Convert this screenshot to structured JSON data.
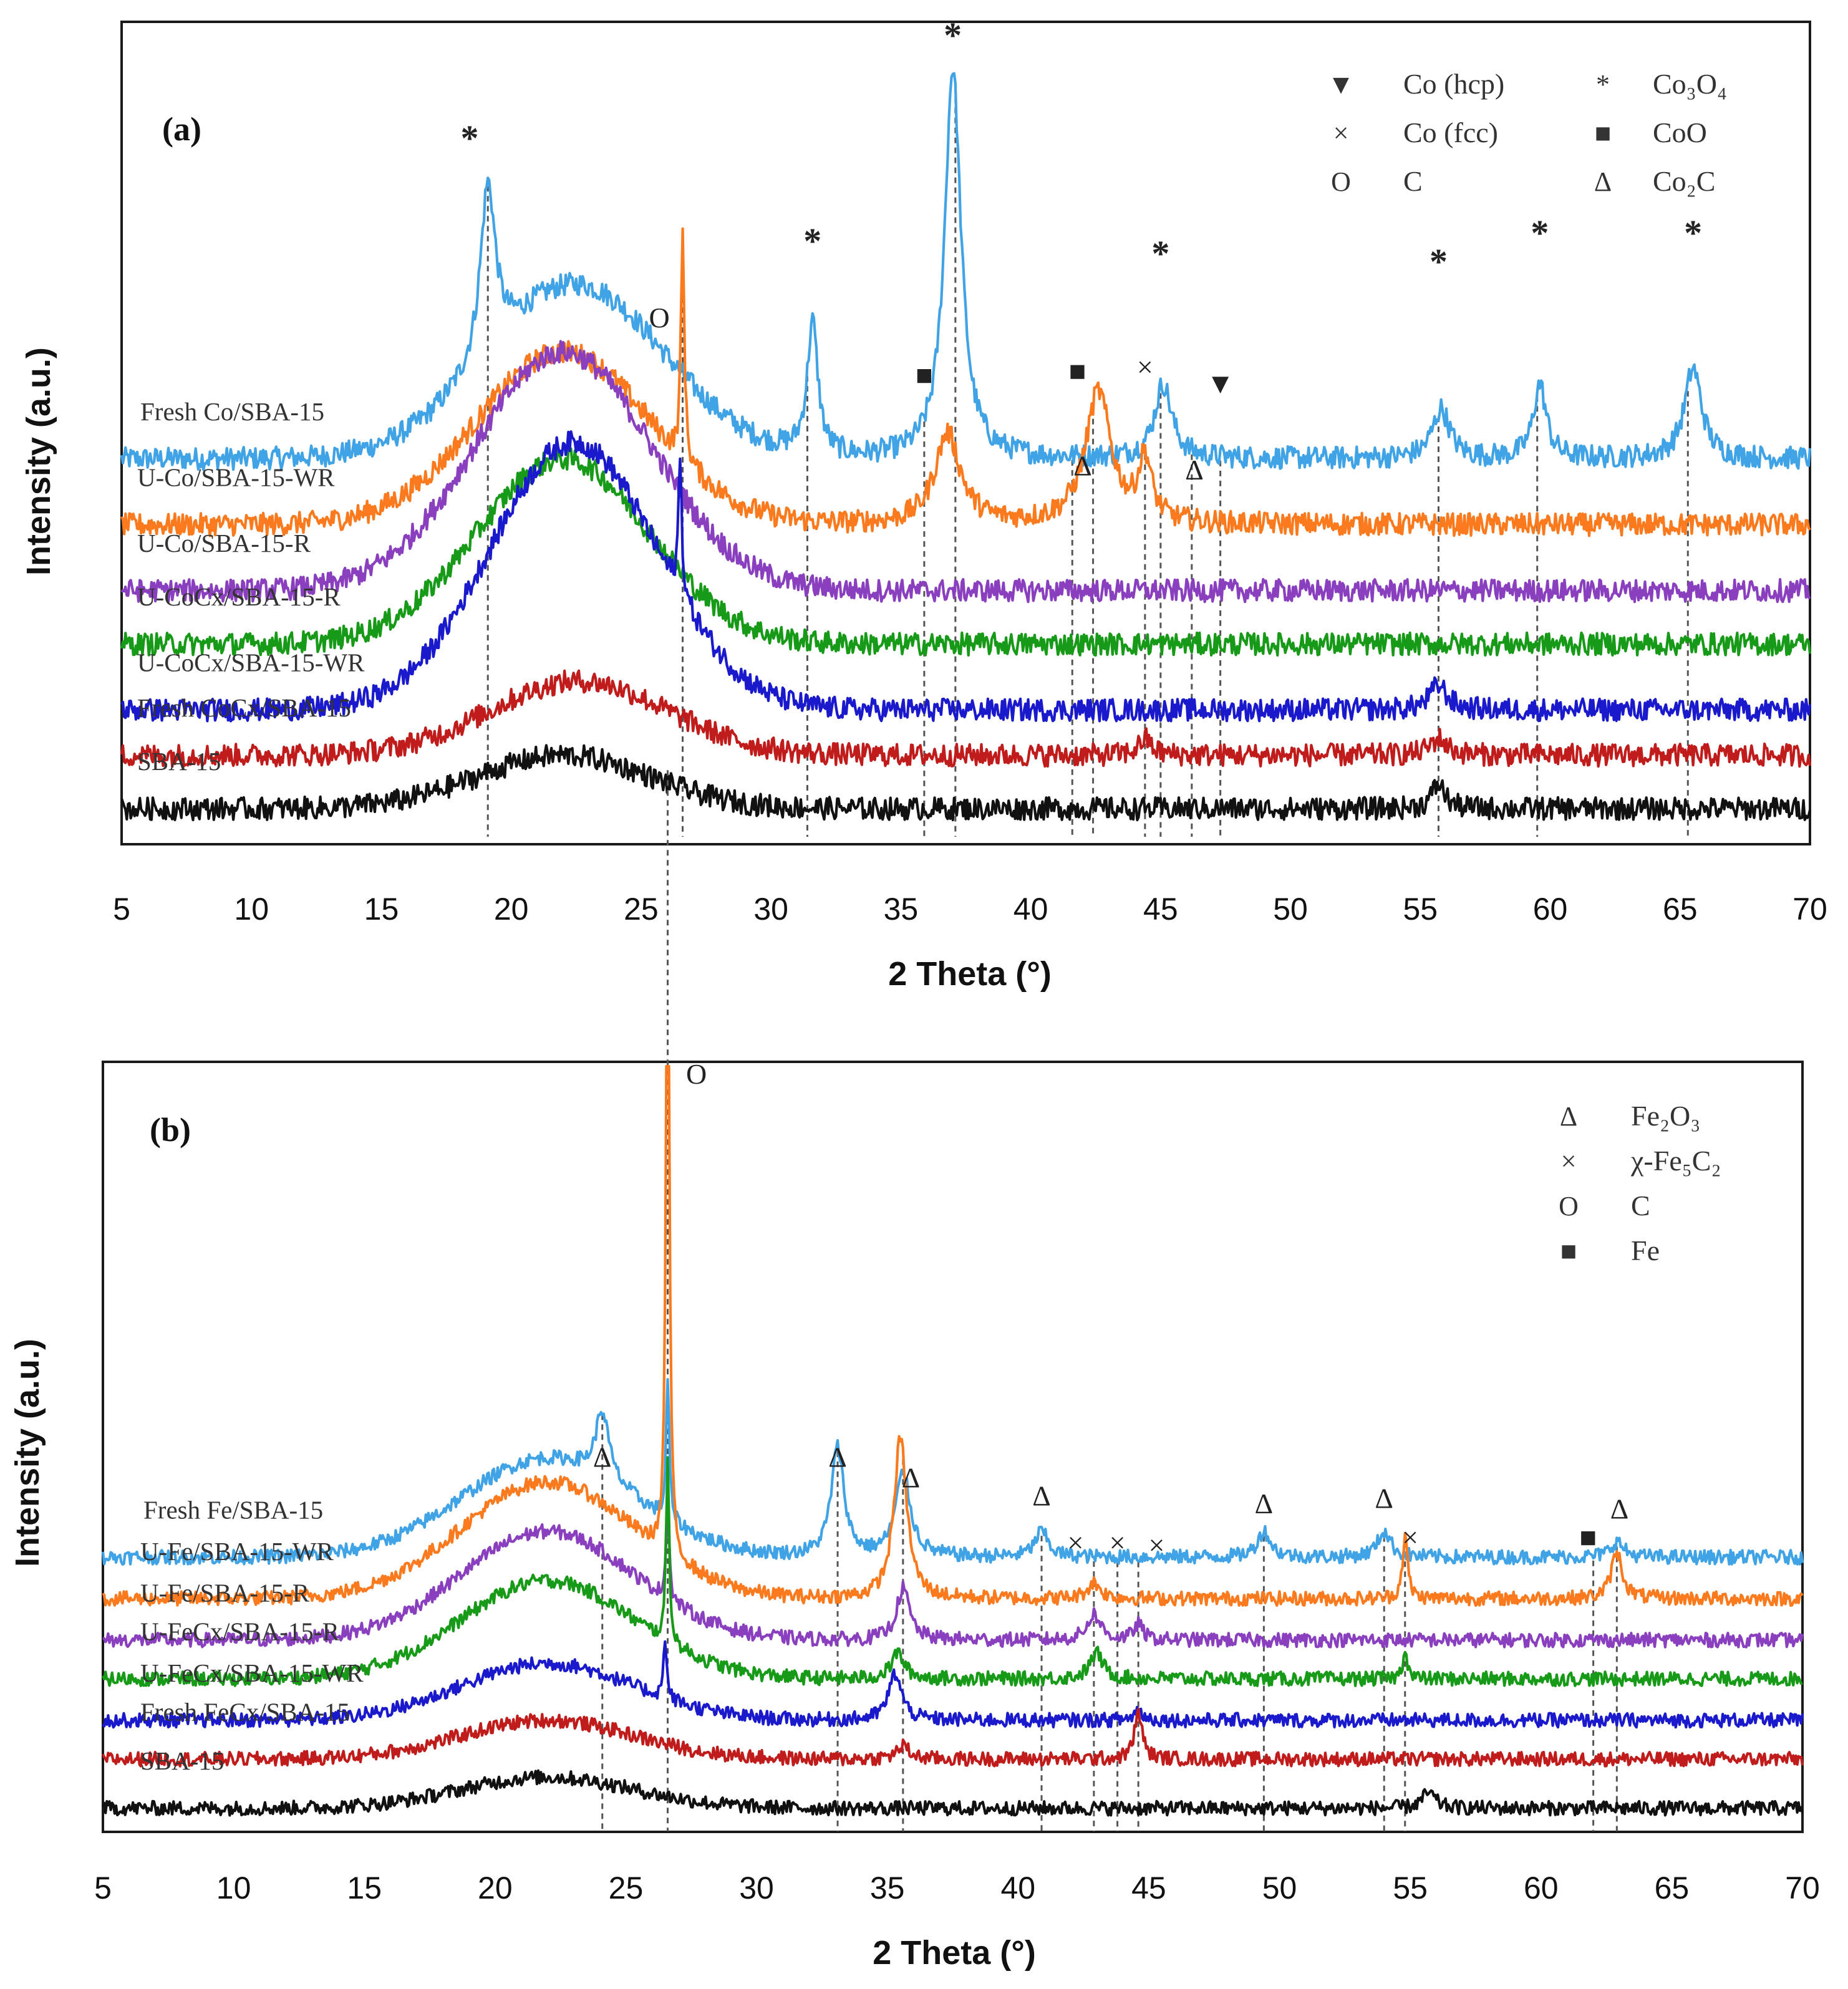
{
  "chart_data": [
    {
      "panel": "(a)",
      "type": "line",
      "title": "",
      "xlabel": "2 Theta (°)",
      "ylabel": "Intensity (a.u.)",
      "xlim": [
        5,
        70
      ],
      "xticks": [
        5,
        10,
        15,
        20,
        25,
        30,
        35,
        40,
        45,
        50,
        55,
        60,
        65,
        70
      ],
      "grid": false,
      "legend": [
        {
          "symbol": "▼",
          "label": "Co (hcp)"
        },
        {
          "symbol": "*",
          "label": "Co₃O₄"
        },
        {
          "symbol": "×",
          "label": "Co (fcc)"
        },
        {
          "symbol": "■",
          "label": "CoO"
        },
        {
          "symbol": "O",
          "label": "C"
        },
        {
          "symbol": "Δ",
          "label": "Co₂C"
        }
      ],
      "reference_lines": [
        19.1,
        26.6,
        31.4,
        35.9,
        37.1,
        41.6,
        42.4,
        44.4,
        45.0,
        46.2,
        47.3,
        55.7,
        59.5,
        65.3
      ],
      "series": [
        {
          "name": "Fresh Co/SBA-15",
          "color": "#3fa3e6",
          "baseline": 0.9,
          "hump": {
            "center": 22.5,
            "width": 3.4,
            "height": 0.42
          },
          "peaks": [
            [
              19.1,
              0.42,
              0.35
            ],
            [
              31.6,
              0.32,
              0.25
            ],
            [
              37.0,
              0.95,
              0.38
            ],
            [
              45.1,
              0.18,
              0.4
            ],
            [
              55.8,
              0.12,
              0.4
            ],
            [
              59.6,
              0.18,
              0.3
            ],
            [
              65.5,
              0.22,
              0.4
            ]
          ]
        },
        {
          "name": "U-Co/SBA-15-WR",
          "color": "#fb7a1e",
          "baseline": 0.74,
          "hump": {
            "center": 22.0,
            "width": 3.3,
            "height": 0.42
          },
          "peaks": [
            [
              26.6,
              0.55,
              0.08
            ],
            [
              36.8,
              0.22,
              0.6
            ],
            [
              42.6,
              0.32,
              0.6
            ],
            [
              44.4,
              0.15,
              0.3
            ]
          ]
        },
        {
          "name": "U-Co/SBA-15-R",
          "color": "#8a3fbf",
          "baseline": 0.58,
          "hump": {
            "center": 22.0,
            "width": 3.4,
            "height": 0.58
          },
          "peaks": []
        },
        {
          "name": "U-CoCx/SBA-15-R",
          "color": "#179a17",
          "baseline": 0.45,
          "hump": {
            "center": 22.0,
            "width": 3.3,
            "height": 0.45
          },
          "peaks": []
        },
        {
          "name": "U-CoCx/SBA-15-WR",
          "color": "#1a1acc",
          "baseline": 0.29,
          "hump": {
            "center": 22.4,
            "width": 3.2,
            "height": 0.65
          },
          "peaks": [
            [
              26.5,
              0.32,
              0.08
            ],
            [
              55.7,
              0.06,
              0.4
            ]
          ]
        },
        {
          "name": "Fresh CoCx/SBA-15",
          "color": "#c01c1c",
          "baseline": 0.18,
          "hump": {
            "center": 22.6,
            "width": 3.4,
            "height": 0.18
          },
          "peaks": [
            [
              44.4,
              0.04,
              0.3
            ],
            [
              55.7,
              0.04,
              0.4
            ]
          ]
        },
        {
          "name": "SBA-15",
          "color": "#111111",
          "baseline": 0.05,
          "hump": {
            "center": 22.0,
            "width": 3.3,
            "height": 0.13
          },
          "peaks": [
            [
              55.7,
              0.06,
              0.3
            ]
          ]
        }
      ],
      "annotations": [
        {
          "text": "*",
          "x": 18.4,
          "y": 1.65,
          "star": true
        },
        {
          "text": "*",
          "x": 31.6,
          "y": 1.4,
          "star": true
        },
        {
          "text": "*",
          "x": 37.0,
          "y": 1.9,
          "star": true
        },
        {
          "text": "*",
          "x": 45.0,
          "y": 1.37,
          "star": true
        },
        {
          "text": "*",
          "x": 55.7,
          "y": 1.35,
          "star": true
        },
        {
          "text": "*",
          "x": 59.6,
          "y": 1.42,
          "star": true
        },
        {
          "text": "*",
          "x": 65.5,
          "y": 1.42,
          "star": true
        },
        {
          "text": "O",
          "x": 25.7,
          "y": 1.22
        },
        {
          "text": "■",
          "x": 35.9,
          "y": 1.08
        },
        {
          "text": "■",
          "x": 41.8,
          "y": 1.09
        },
        {
          "text": "×",
          "x": 44.4,
          "y": 1.1
        },
        {
          "text": "▼",
          "x": 47.3,
          "y": 1.06
        },
        {
          "text": "Δ",
          "x": 42.0,
          "y": 0.86
        },
        {
          "text": "Δ",
          "x": 46.3,
          "y": 0.85
        }
      ]
    },
    {
      "panel": "(b)",
      "type": "line",
      "title": "",
      "xlabel": "2 Theta (°)",
      "ylabel": "Intensity (a.u.)",
      "xlim": [
        5,
        70
      ],
      "xticks": [
        5,
        10,
        15,
        20,
        25,
        30,
        35,
        40,
        45,
        50,
        55,
        60,
        65,
        70
      ],
      "grid": false,
      "legend": [
        {
          "symbol": "Δ",
          "label": "Fe₂O₃"
        },
        {
          "symbol": "×",
          "label": "χ-Fe₅C₂"
        },
        {
          "symbol": "O",
          "label": "C"
        },
        {
          "symbol": "■",
          "label": "Fe"
        }
      ],
      "reference_lines": [
        24.1,
        26.6,
        33.1,
        35.6,
        40.9,
        42.9,
        43.8,
        44.6,
        49.4,
        54.0,
        54.8,
        62.0,
        62.9
      ],
      "series": [
        {
          "name": "Fresh Fe/SBA-15",
          "color": "#3fa3e6",
          "baseline": 1.03,
          "hump": {
            "center": 22.0,
            "width": 3.3,
            "height": 0.38
          },
          "peaks": [
            [
              24.1,
              0.26,
              0.3
            ],
            [
              26.6,
              0.55,
              0.07
            ],
            [
              33.1,
              0.42,
              0.3
            ],
            [
              35.6,
              0.32,
              0.35
            ],
            [
              40.9,
              0.1,
              0.3
            ],
            [
              49.4,
              0.1,
              0.3
            ],
            [
              54.0,
              0.1,
              0.3
            ],
            [
              62.9,
              0.06,
              0.3
            ]
          ]
        },
        {
          "name": "U-Fe/SBA-15-WR",
          "color": "#fb7a1e",
          "baseline": 0.87,
          "hump": {
            "center": 22.0,
            "width": 3.3,
            "height": 0.45
          },
          "peaks": [
            [
              26.6,
              3.05,
              0.07
            ],
            [
              35.5,
              0.62,
              0.3
            ],
            [
              42.9,
              0.06,
              0.3
            ],
            [
              54.8,
              0.24,
              0.12
            ],
            [
              62.9,
              0.18,
              0.25
            ]
          ]
        },
        {
          "name": "U-Fe/SBA-15-R",
          "color": "#8a3fbf",
          "baseline": 0.71,
          "hump": {
            "center": 22.0,
            "width": 3.3,
            "height": 0.42
          },
          "peaks": [
            [
              26.6,
              0.38,
              0.07
            ],
            [
              35.6,
              0.2,
              0.3
            ],
            [
              42.9,
              0.1,
              0.3
            ],
            [
              44.6,
              0.06,
              0.2
            ]
          ]
        },
        {
          "name": "U-FeCx/SBA-15-R",
          "color": "#179a17",
          "baseline": 0.56,
          "hump": {
            "center": 22.0,
            "width": 3.3,
            "height": 0.38
          },
          "peaks": [
            [
              26.6,
              0.72,
              0.07
            ],
            [
              35.4,
              0.1,
              0.3
            ],
            [
              43.0,
              0.1,
              0.3
            ],
            [
              54.8,
              0.12,
              0.1
            ]
          ]
        },
        {
          "name": "U-FeCx/SBA-15-WR",
          "color": "#1a1acc",
          "baseline": 0.4,
          "hump": {
            "center": 22.0,
            "width": 3.3,
            "height": 0.22
          },
          "peaks": [
            [
              26.5,
              0.24,
              0.07
            ],
            [
              35.3,
              0.18,
              0.3
            ],
            [
              44.6,
              0.04,
              0.2
            ]
          ]
        },
        {
          "name": "Fresh FeCx/SBA-15",
          "color": "#c01c1c",
          "baseline": 0.25,
          "hump": {
            "center": 22.0,
            "width": 3.3,
            "height": 0.15
          },
          "peaks": [
            [
              35.6,
              0.05,
              0.3
            ],
            [
              44.6,
              0.18,
              0.18
            ]
          ]
        },
        {
          "name": "SBA-15",
          "color": "#111111",
          "baseline": 0.06,
          "hump": {
            "center": 22.0,
            "width": 3.3,
            "height": 0.12
          },
          "peaks": [
            [
              55.7,
              0.06,
              0.3
            ]
          ]
        }
      ],
      "annotations": [
        {
          "text": "O",
          "x": 27.7,
          "y": 2.86
        },
        {
          "text": "Δ",
          "x": 24.1,
          "y": 1.38
        },
        {
          "text": "Δ",
          "x": 33.1,
          "y": 1.38
        },
        {
          "text": "Δ",
          "x": 35.9,
          "y": 1.3
        },
        {
          "text": "Δ",
          "x": 40.9,
          "y": 1.23
        },
        {
          "text": "Δ",
          "x": 49.4,
          "y": 1.2
        },
        {
          "text": "Δ",
          "x": 54.0,
          "y": 1.22
        },
        {
          "text": "Δ",
          "x": 63.0,
          "y": 1.18
        },
        {
          "text": "×",
          "x": 42.2,
          "y": 1.05
        },
        {
          "text": "×",
          "x": 43.8,
          "y": 1.05
        },
        {
          "text": "×",
          "x": 45.3,
          "y": 1.04
        },
        {
          "text": "×",
          "x": 55.0,
          "y": 1.07
        },
        {
          "text": "■",
          "x": 61.8,
          "y": 1.07
        }
      ]
    }
  ]
}
